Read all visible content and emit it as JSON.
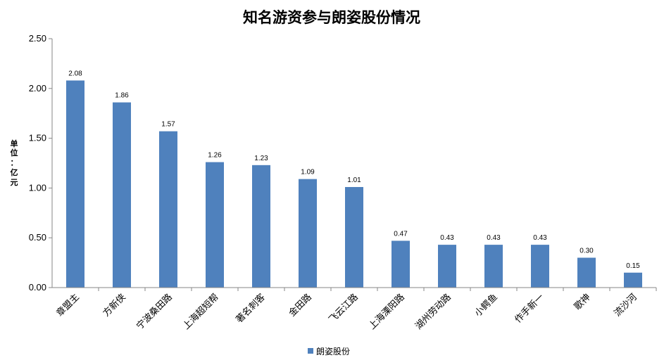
{
  "chart_data": {
    "type": "bar",
    "title": "知名游资参与朗姿股份情况",
    "ylabel": "单位：亿元",
    "ylabel_chars": [
      "单",
      "位",
      "：",
      "亿",
      "元"
    ],
    "categories": [
      "章盟主",
      "方新侠",
      "宁波桑田路",
      "上海超短帮",
      "著名刺客",
      "金田路",
      "飞云江路",
      "上海溧阳路",
      "湖州劳动路",
      "小鳄鱼",
      "作手新一",
      "歌神",
      "流沙河"
    ],
    "series": [
      {
        "name": "朗姿股份",
        "values": [
          2.08,
          1.86,
          1.57,
          1.26,
          1.23,
          1.09,
          1.01,
          0.47,
          0.43,
          0.43,
          0.43,
          0.3,
          0.15
        ]
      }
    ],
    "data_labels": [
      "2.08",
      "1.86",
      "1.57",
      "1.26",
      "1.23",
      "1.09",
      "1.01",
      "0.47",
      "0.43",
      "0.43",
      "0.43",
      "0.30",
      "0.15"
    ],
    "yticks": [
      "0.00",
      "0.50",
      "1.00",
      "1.50",
      "2.00",
      "2.50"
    ],
    "ylim": [
      0,
      2.5
    ],
    "grid": false,
    "legend_position": "bottom",
    "bar_color": "#4F81BD"
  }
}
